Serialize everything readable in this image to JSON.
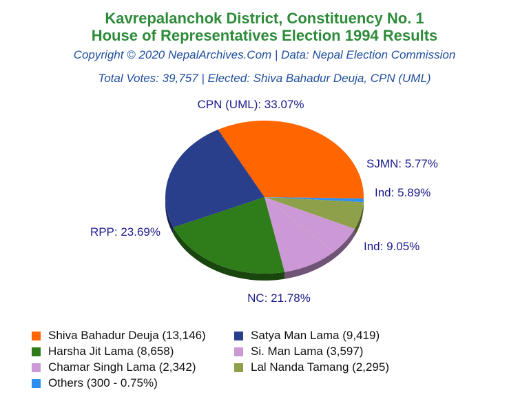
{
  "header": {
    "title_line1": "Kavrepalanchok District, Constituency No. 1",
    "title_line2": "House of Representatives Election 1994 Results",
    "copyright": "Copyright © 2020 NepalArchives.Com | Data: Nepal Election Commission",
    "summary": "Total Votes: 39,757 | Elected: Shiva Bahadur Deuja, CPN (UML)"
  },
  "chart_data": {
    "type": "pie",
    "title": "Kavrepalanchok District, Constituency No. 1 House of Representatives Election 1994 Results",
    "slices": [
      {
        "label": "CPN (UML): 33.07%",
        "party": "CPN (UML)",
        "percent": 33.07,
        "color": "#ff6600",
        "legend": "Shiva Bahadur Deuja (13,146)",
        "votes": 13146
      },
      {
        "label": "",
        "party": "Others",
        "percent": 0.75,
        "color": "#2e8ff0",
        "legend": "Others (300 - 0.75%)",
        "votes": 300
      },
      {
        "label": "SJMN: 5.77%",
        "party": "SJMN",
        "percent": 5.77,
        "color": "#8ea14a",
        "legend": "Lal Nanda Tamang (2,295)",
        "votes": 2295
      },
      {
        "label": "Ind: 5.89%",
        "party": "Ind",
        "percent": 5.89,
        "color": "#cc99d6",
        "legend": "Chamar Singh Lama (2,342)",
        "votes": 2342
      },
      {
        "label": "Ind: 9.05%",
        "party": "Ind",
        "percent": 9.05,
        "color": "#cc99d6",
        "legend": "Si. Man Lama (3,597)",
        "votes": 3597
      },
      {
        "label": "NC: 21.78%",
        "party": "NC",
        "percent": 21.78,
        "color": "#2e7d1a",
        "legend": "Harsha Jit Lama (8,658)",
        "votes": 8658
      },
      {
        "label": "RPP: 23.69%",
        "party": "RPP",
        "percent": 23.69,
        "color": "#2a3f8c",
        "legend": "Satya Man Lama (9,419)",
        "votes": 9419
      }
    ],
    "legend": [
      {
        "text": "Shiva Bahadur Deuja (13,146)",
        "color": "#ff6600"
      },
      {
        "text": "Satya Man Lama (9,419)",
        "color": "#2a3f8c"
      },
      {
        "text": "Harsha Jit Lama (8,658)",
        "color": "#2e7d1a"
      },
      {
        "text": "Si. Man Lama (3,597)",
        "color": "#cc99d6"
      },
      {
        "text": "Chamar Singh Lama (2,342)",
        "color": "#cc99d6"
      },
      {
        "text": "Lal Nanda Tamang (2,295)",
        "color": "#8ea14a"
      },
      {
        "text": "Others (300 - 0.75%)",
        "color": "#2e8ff0"
      }
    ],
    "legend_placement": "bottom"
  }
}
